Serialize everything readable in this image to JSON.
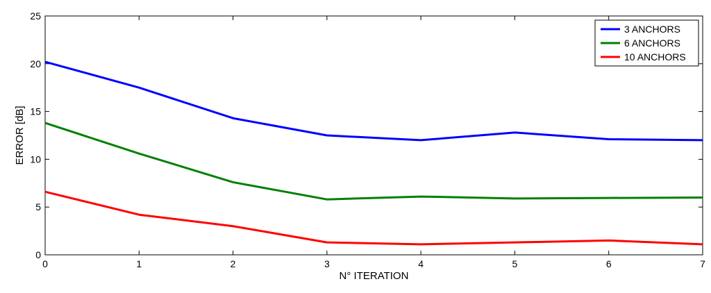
{
  "chart_data": {
    "type": "line",
    "title": "",
    "xlabel": "N° ITERATION",
    "ylabel": "ERROR [dB]",
    "x": [
      0,
      1,
      2,
      3,
      4,
      5,
      6,
      7
    ],
    "xlim": [
      0,
      7
    ],
    "ylim": [
      0,
      25
    ],
    "xticks": [
      "0",
      "1",
      "2",
      "3",
      "4",
      "5",
      "6",
      "7"
    ],
    "yticks": [
      "0",
      "5",
      "10",
      "15",
      "20",
      "25"
    ],
    "grid": false,
    "legend_position": "top-right",
    "series": [
      {
        "name": "3 ANCHORS",
        "color": "#0000ff",
        "values": [
          20.2,
          17.5,
          14.3,
          12.5,
          12.0,
          12.8,
          12.1,
          12.0
        ]
      },
      {
        "name": "6 ANCHORS",
        "color": "#008000",
        "values": [
          13.8,
          10.6,
          7.6,
          5.8,
          6.1,
          5.9,
          5.95,
          6.0
        ]
      },
      {
        "name": "10 ANCHORS",
        "color": "#ff0000",
        "values": [
          6.6,
          4.2,
          3.0,
          1.3,
          1.1,
          1.3,
          1.5,
          1.1
        ]
      }
    ]
  }
}
